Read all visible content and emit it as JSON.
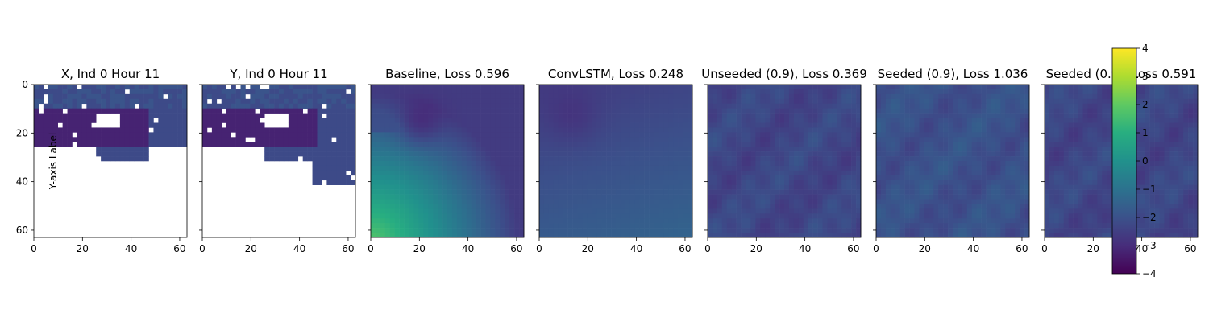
{
  "figure": {
    "ylabel": "Y-axis Label",
    "colorbar": {
      "ticks": [
        4,
        3,
        2,
        1,
        0,
        -1,
        -2,
        -3,
        -4
      ]
    }
  },
  "chart_data": [
    {
      "type": "heatmap",
      "title": "X, Ind 0 Hour 11",
      "xticks": [
        0,
        20,
        40,
        60
      ],
      "yticks": [
        0,
        20,
        40,
        60
      ],
      "xlim": [
        0,
        63
      ],
      "ylim": [
        63,
        0
      ],
      "vmin": -4,
      "vmax": 4,
      "colormap": "viridis",
      "content": "mask"
    },
    {
      "type": "heatmap",
      "title": "Y, Ind 0 Hour 11",
      "xticks": [
        0,
        20,
        40,
        60
      ],
      "yticks": [
        0,
        20,
        40,
        60
      ],
      "xlim": [
        0,
        63
      ],
      "ylim": [
        63,
        0
      ],
      "vmin": -4,
      "vmax": 4,
      "colormap": "viridis",
      "content": "mask"
    },
    {
      "type": "heatmap",
      "title": "Baseline, Loss 0.596",
      "xticks": [
        0,
        20,
        40,
        60
      ],
      "yticks": [
        0,
        20,
        40,
        60
      ],
      "xlim": [
        0,
        63
      ],
      "ylim": [
        63,
        0
      ],
      "vmin": -4,
      "vmax": 4,
      "colormap": "viridis",
      "content": "baseline"
    },
    {
      "type": "heatmap",
      "title": "ConvLSTM, Loss 0.248",
      "xticks": [
        0,
        20,
        40,
        60
      ],
      "yticks": [
        0,
        20,
        40,
        60
      ],
      "xlim": [
        0,
        63
      ],
      "ylim": [
        63,
        0
      ],
      "vmin": -4,
      "vmax": 4,
      "colormap": "viridis",
      "content": "smooth"
    },
    {
      "type": "heatmap",
      "title": "Unseeded (0.9), Loss 0.369",
      "xticks": [
        0,
        20,
        40,
        60
      ],
      "yticks": [
        0,
        20,
        40,
        60
      ],
      "xlim": [
        0,
        63
      ],
      "ylim": [
        63,
        0
      ],
      "vmin": -4,
      "vmax": 4,
      "colormap": "viridis",
      "content": "noisy"
    },
    {
      "type": "heatmap",
      "title": "Seeded (0.9), Loss 1.036",
      "xticks": [
        0,
        20,
        40,
        60
      ],
      "yticks": [
        0,
        20,
        40,
        60
      ],
      "xlim": [
        0,
        63
      ],
      "ylim": [
        63,
        0
      ],
      "vmin": -4,
      "vmax": 4,
      "colormap": "viridis",
      "content": "noisy"
    },
    {
      "type": "heatmap",
      "title": "Seeded (0.9), Loss 0.591",
      "xticks": [
        0,
        20,
        40,
        60
      ],
      "yticks": [
        0,
        20,
        40,
        60
      ],
      "xlim": [
        0,
        63
      ],
      "ylim": [
        63,
        0
      ],
      "vmin": -4,
      "vmax": 4,
      "colormap": "viridis",
      "content": "noisy"
    }
  ]
}
